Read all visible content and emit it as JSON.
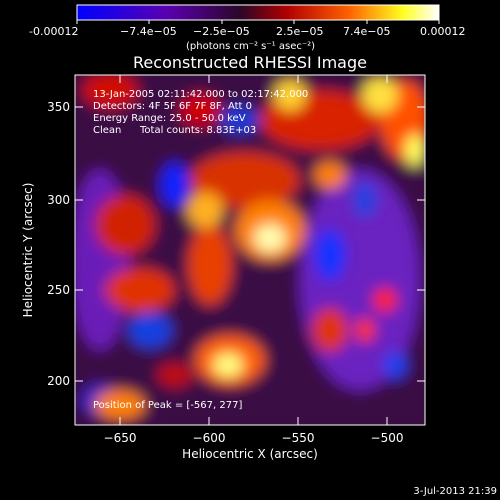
{
  "colorbar": {
    "min_label": "-0.00012",
    "tick_labels": [
      "-0.00012",
      "−7.4e−05",
      "−2.5e−05",
      "2.5e−05",
      "7.4e−05",
      "0.00012"
    ],
    "units_label": "(photons cm⁻² s⁻¹ asec⁻²)",
    "colormap": "rhessi-heat",
    "colors": [
      "#0000ff",
      "#5a00b0",
      "#3a0a3a",
      "#c00000",
      "#ff6000",
      "#ffff00",
      "#ffffff"
    ]
  },
  "title": "Reconstructed RHESSI Image",
  "annotations": {
    "line1": "13-Jan-2005 02:11:42.000 to 02:17:42.000",
    "line2": "Detectors: 4F 5F 6F 7F 8F, Att 0",
    "line3": "Energy Range: 25.0 - 50.0 keV",
    "line4_method": "Clean",
    "line4_counts": "Total counts: 8.83E+03",
    "peak": "Position of Peak = [-567, 277]"
  },
  "axes": {
    "xlabel": "Heliocentric X (arcsec)",
    "ylabel": "Heliocentric Y (arcsec)",
    "xticks": [
      "−650",
      "−600",
      "−550",
      "−500"
    ],
    "yticks": [
      "200",
      "250",
      "300",
      "350"
    ],
    "xlim": [
      -672,
      -475
    ],
    "ylim": [
      176,
      372
    ]
  },
  "timestamp": "3-Jul-2013 21:39"
}
